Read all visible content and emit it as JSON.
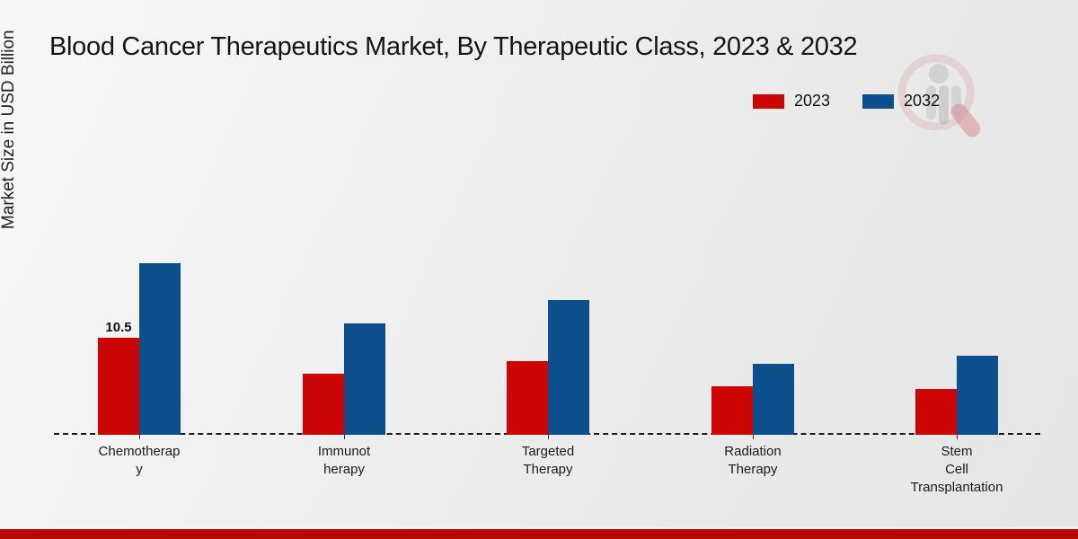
{
  "page": {
    "title": "Blood Cancer Therapeutics Market, By Therapeutic Class, 2023 & 2032",
    "footer_accent_color": "#bb0606"
  },
  "legend": {
    "position": "top-right",
    "items": [
      {
        "label": "2023",
        "color": "#cc0505"
      },
      {
        "label": "2032",
        "color": "#0d4e8c"
      }
    ]
  },
  "watermark": {
    "icon": "company-logo-watermark"
  },
  "chart_data": {
    "type": "bar",
    "title": "Blood Cancer Therapeutics Market, By Therapeutic Class, 2023 & 2032",
    "xlabel": "",
    "ylabel": "Market Size in USD Billion",
    "categories": [
      "Chemotherapy",
      "Immunotherapy",
      "Targeted Therapy",
      "Radiation Therapy",
      "Stem Cell Transplantation"
    ],
    "category_label_lines": [
      [
        "Chemotherap",
        "y"
      ],
      [
        "Immunot",
        "herapy"
      ],
      [
        "Targeted",
        "Therapy"
      ],
      [
        "Radiation",
        "Therapy"
      ],
      [
        "Stem",
        "Cell",
        "Transplantation"
      ]
    ],
    "series": [
      {
        "name": "2023",
        "color": "#cc0505",
        "values": [
          10.5,
          6.6,
          8.0,
          5.3,
          5.0
        ]
      },
      {
        "name": "2032",
        "color": "#0d4e8c",
        "values": [
          18.6,
          12.1,
          14.6,
          7.7,
          8.6
        ]
      }
    ],
    "data_labels": [
      {
        "series": "2023",
        "category": "Chemotherapy",
        "category_index": 0,
        "text": "10.5"
      }
    ],
    "ylim": [
      0,
      20
    ],
    "y_axis_ticks_visible": false,
    "grid": false,
    "baseline_style": "dashed",
    "legend_position": "top-right"
  }
}
